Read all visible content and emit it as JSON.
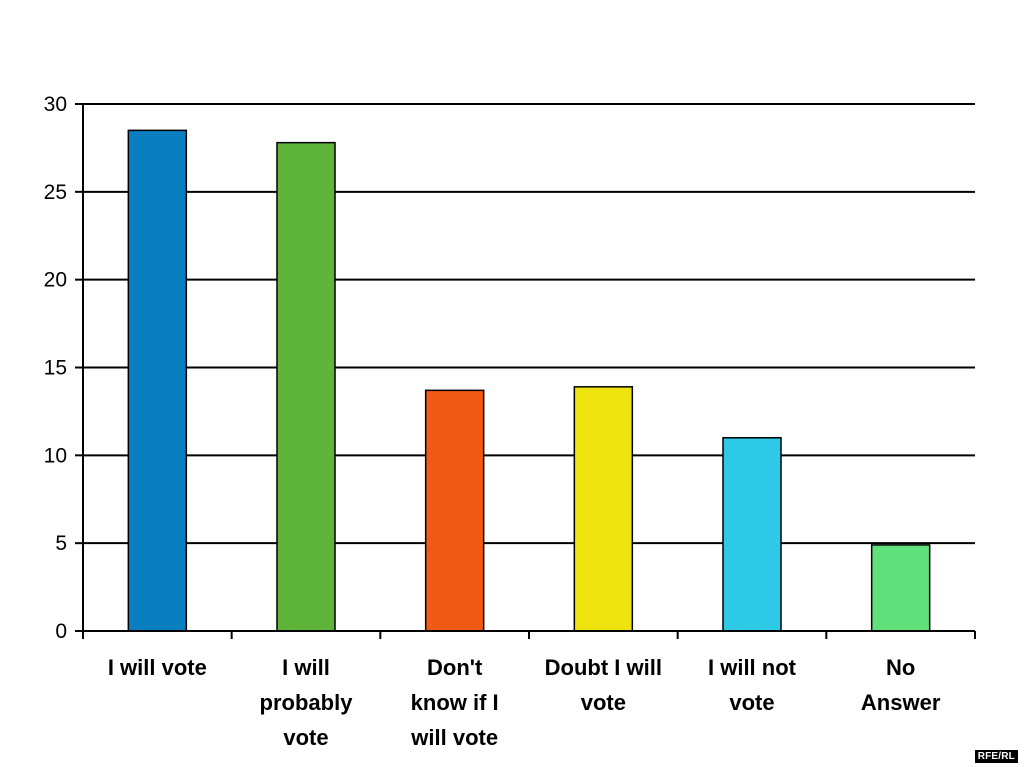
{
  "chart_data": {
    "type": "bar",
    "categories": [
      [
        "I will vote"
      ],
      [
        "I will",
        "probably",
        "vote"
      ],
      [
        "Don't",
        "know if I",
        "will vote"
      ],
      [
        "Doubt I will",
        "vote"
      ],
      [
        "I will not",
        "vote"
      ],
      [
        "No",
        "Answer"
      ]
    ],
    "values": [
      28.5,
      27.8,
      13.7,
      13.9,
      11.0,
      4.9
    ],
    "colors": [
      "#0a7fc0",
      "#5fb53a",
      "#f05a14",
      "#eee20f",
      "#2ec9e6",
      "#5fe07a"
    ],
    "ylim": [
      0,
      30
    ],
    "yticks": [
      "0",
      "5",
      "10",
      "15",
      "20",
      "25",
      "30"
    ],
    "grid": true,
    "title": "",
    "xlabel": "",
    "ylabel": ""
  },
  "credit": "RFE/RL"
}
